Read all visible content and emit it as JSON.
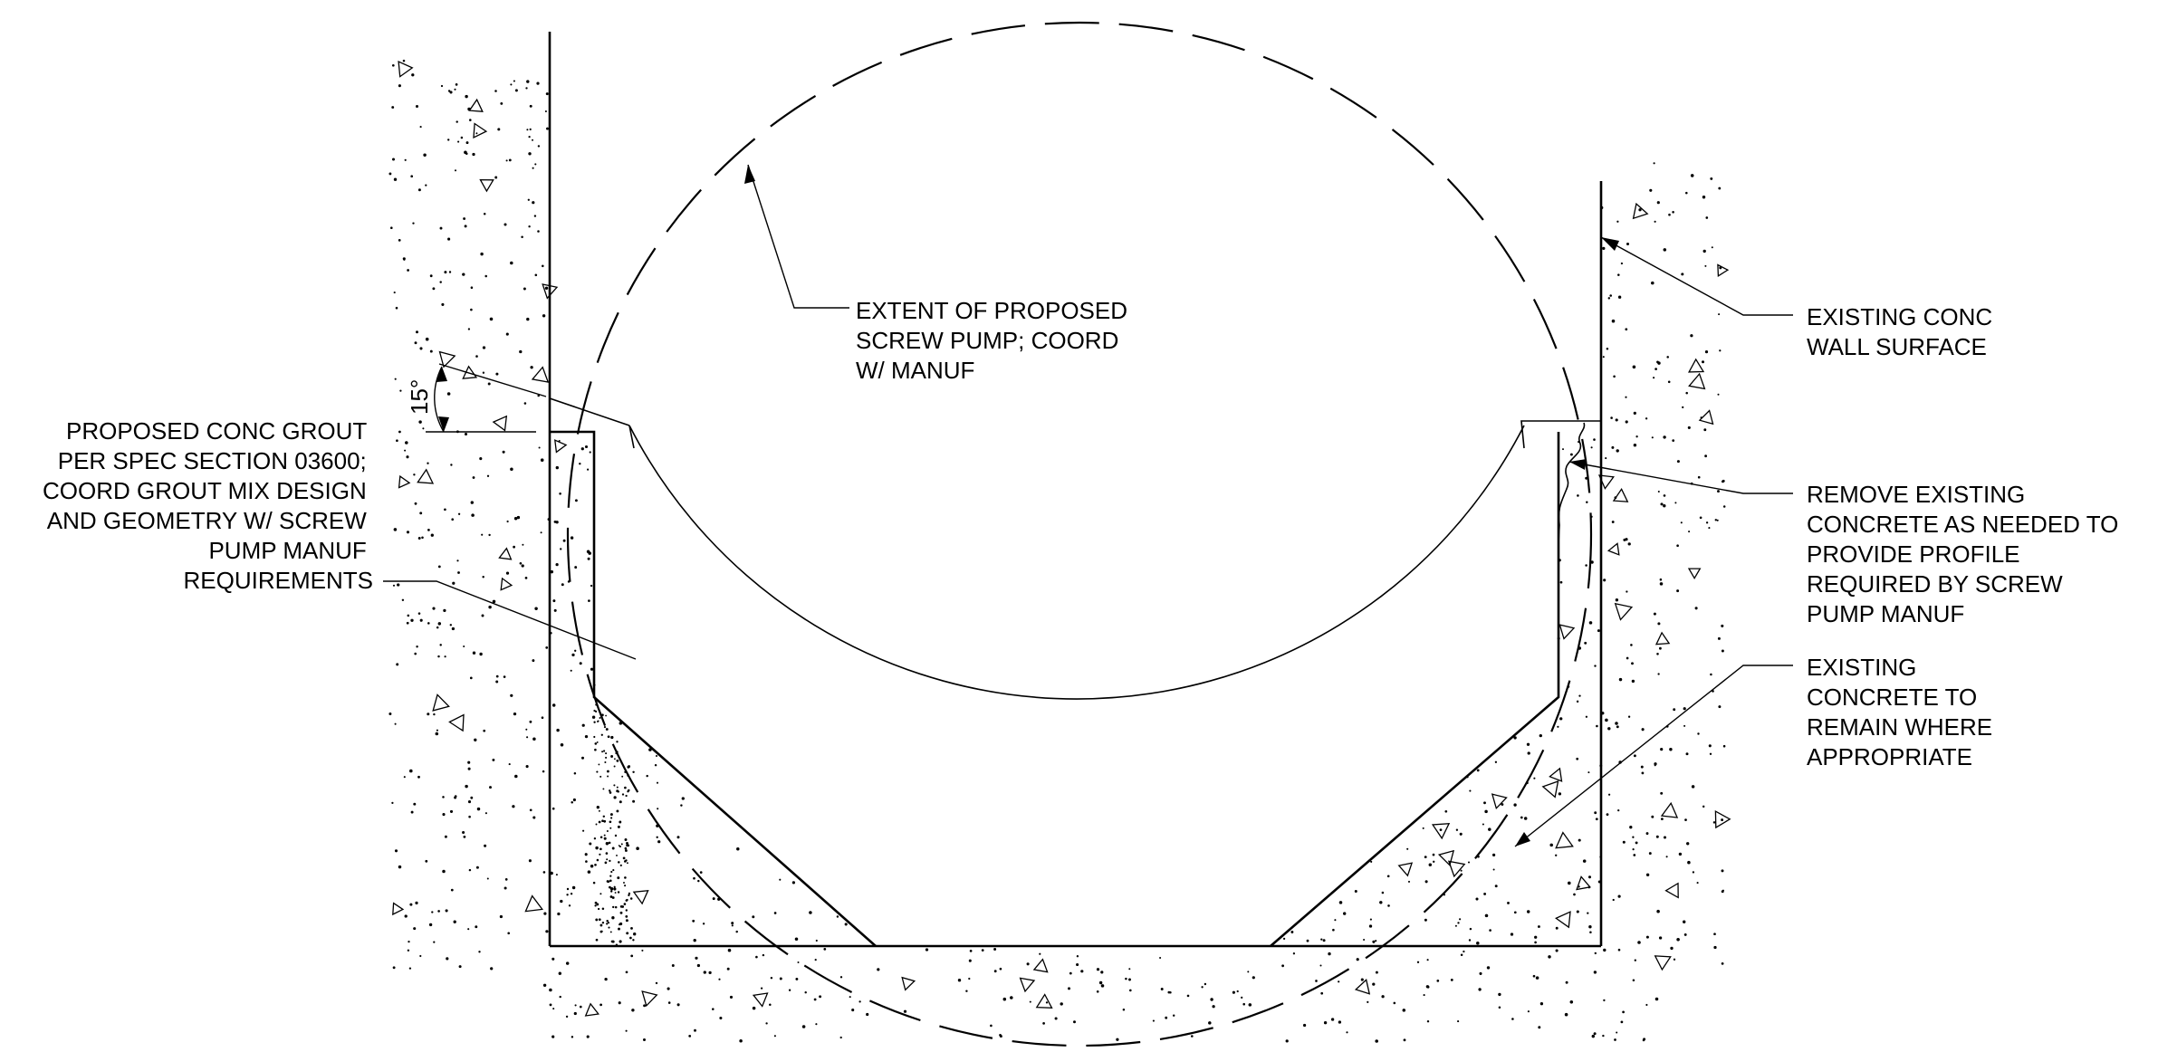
{
  "notes": {
    "screw_pump": [
      "EXTENT OF PROPOSED",
      "SCREW PUMP; COORD",
      "W/ MANUF"
    ],
    "wall_surface": [
      "EXISTING CONC",
      "WALL SURFACE"
    ],
    "grout": [
      "PROPOSED CONC GROUT",
      "PER SPEC SECTION 03600;",
      "COORD GROUT MIX DESIGN",
      "AND GEOMETRY W/ SCREW",
      "PUMP MANUF",
      "REQUIREMENTS"
    ],
    "remove_concrete": [
      "REMOVE EXISTING",
      "CONCRETE AS NEEDED TO",
      "PROVIDE PROFILE",
      "REQUIRED BY SCREW",
      "PUMP MANUF"
    ],
    "existing_concrete": [
      "EXISTING",
      "CONCRETE TO",
      "REMAIN WHERE",
      "APPROPRIATE"
    ]
  },
  "dimension": {
    "angle_label": "15°"
  }
}
